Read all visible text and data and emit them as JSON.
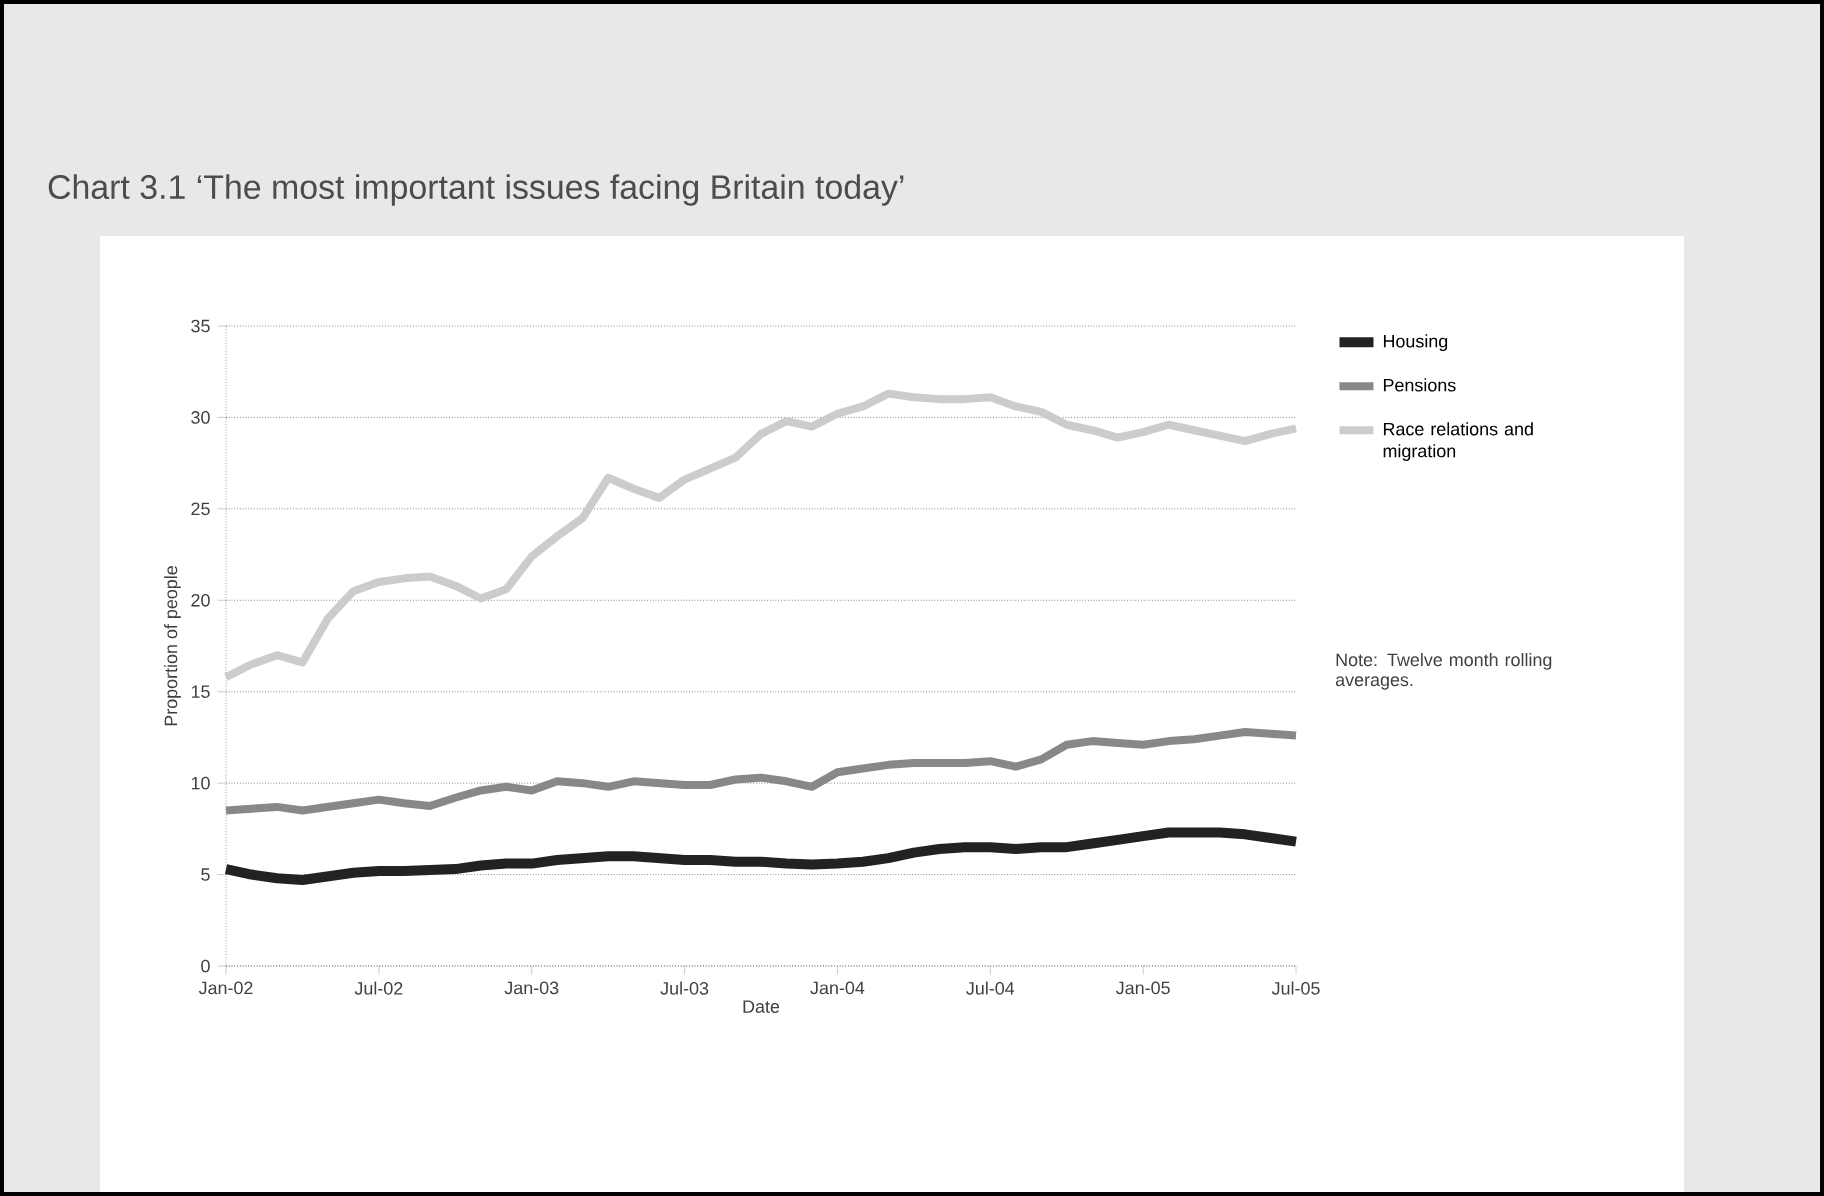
{
  "chart_data": {
    "type": "line",
    "title": "Chart 3.1 ‘The most important issues facing Britain today’",
    "xlabel": "Date",
    "ylabel": "Proportion of people",
    "x": [
      "2002-01",
      "2002-02",
      "2002-03",
      "2002-04",
      "2002-05",
      "2002-06",
      "2002-07",
      "2002-08",
      "2002-09",
      "2002-10",
      "2002-11",
      "2002-12",
      "2003-01",
      "2003-02",
      "2003-03",
      "2003-04",
      "2003-05",
      "2003-06",
      "2003-07",
      "2003-08",
      "2003-09",
      "2003-10",
      "2003-11",
      "2003-12",
      "2004-01",
      "2004-02",
      "2004-03",
      "2004-04",
      "2004-05",
      "2004-06",
      "2004-07",
      "2004-08",
      "2004-09",
      "2004-10",
      "2004-11",
      "2004-12",
      "2005-01",
      "2005-02",
      "2005-03",
      "2005-04",
      "2005-05",
      "2005-06",
      "2005-07"
    ],
    "series": [
      {
        "name": "Housing",
        "color": "#222222",
        "values": [
          5.3,
          5.0,
          4.8,
          4.7,
          4.9,
          5.1,
          5.2,
          5.2,
          5.25,
          5.3,
          5.5,
          5.6,
          5.6,
          5.8,
          5.9,
          6.0,
          6.0,
          5.9,
          5.8,
          5.8,
          5.7,
          5.7,
          5.6,
          5.55,
          5.6,
          5.7,
          5.9,
          6.2,
          6.4,
          6.5,
          6.5,
          6.4,
          6.5,
          6.5,
          6.7,
          6.9,
          7.1,
          7.3,
          7.3,
          7.3,
          7.2,
          7.0,
          6.8
        ]
      },
      {
        "name": "Pensions",
        "color": "#888888",
        "values": [
          8.5,
          8.6,
          8.7,
          8.5,
          8.7,
          8.9,
          9.1,
          8.9,
          8.75,
          9.2,
          9.6,
          9.8,
          9.6,
          10.1,
          10.0,
          9.8,
          10.1,
          10.0,
          9.9,
          9.9,
          10.2,
          10.3,
          10.1,
          9.8,
          10.6,
          10.8,
          11.0,
          11.1,
          11.1,
          11.1,
          11.2,
          10.9,
          11.3,
          12.1,
          12.3,
          12.2,
          12.1,
          12.3,
          12.4,
          12.6,
          12.8,
          12.7,
          12.6
        ]
      },
      {
        "name": "Race relations and migration",
        "color": "#cccccc",
        "values": [
          15.8,
          16.5,
          17.0,
          16.6,
          19.0,
          20.5,
          21.0,
          21.2,
          21.3,
          20.8,
          20.1,
          20.6,
          22.4,
          23.5,
          24.5,
          26.7,
          26.1,
          25.6,
          26.6,
          27.2,
          27.8,
          29.1,
          29.8,
          29.5,
          30.2,
          30.6,
          31.3,
          31.1,
          31.0,
          31.0,
          31.1,
          30.6,
          30.3,
          29.6,
          29.3,
          28.9,
          29.2,
          29.6,
          29.3,
          29.0,
          28.7,
          29.1,
          29.4
        ]
      }
    ],
    "xlim": [
      "2002-01",
      "2005-07"
    ],
    "xticks": [
      {
        "value": "2002-01",
        "label": "Jan-02"
      },
      {
        "value": "2002-07",
        "label": "Jul-02"
      },
      {
        "value": "2003-01",
        "label": "Jan-03"
      },
      {
        "value": "2003-07",
        "label": "Jul-03"
      },
      {
        "value": "2004-01",
        "label": "Jan-04"
      },
      {
        "value": "2004-07",
        "label": "Jul-04"
      },
      {
        "value": "2005-01",
        "label": "Jan-05"
      },
      {
        "value": "2005-07",
        "label": "Jul-05"
      }
    ],
    "ylim": [
      0,
      35
    ],
    "yticks": [
      0,
      5,
      10,
      15,
      20,
      25,
      30,
      35
    ],
    "grid": "y",
    "legend": "right",
    "line_style": "solid",
    "annotations": [
      "Note: Twelve month rolling averages."
    ]
  }
}
